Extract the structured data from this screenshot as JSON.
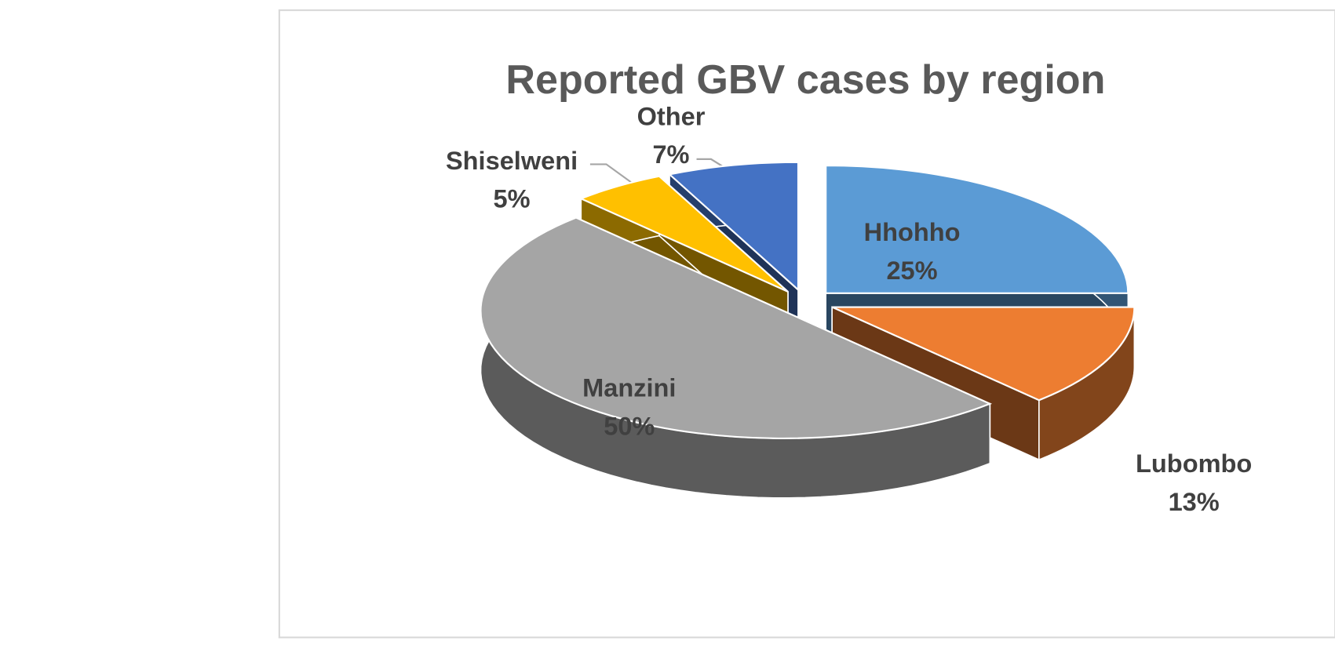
{
  "chart_data": {
    "type": "pie",
    "title": "Reported GBV cases by region",
    "categories": [
      "Hhohho",
      "Lubombo",
      "Manzini",
      "Shiselweni",
      "Other"
    ],
    "values": [
      25,
      13,
      50,
      5,
      7
    ],
    "value_labels": [
      "25%",
      "13%",
      "50%",
      "5%",
      "7%"
    ],
    "colors": [
      "#5b9bd5",
      "#ed7d31",
      "#a5a5a5",
      "#ffc000",
      "#4472c4"
    ]
  }
}
